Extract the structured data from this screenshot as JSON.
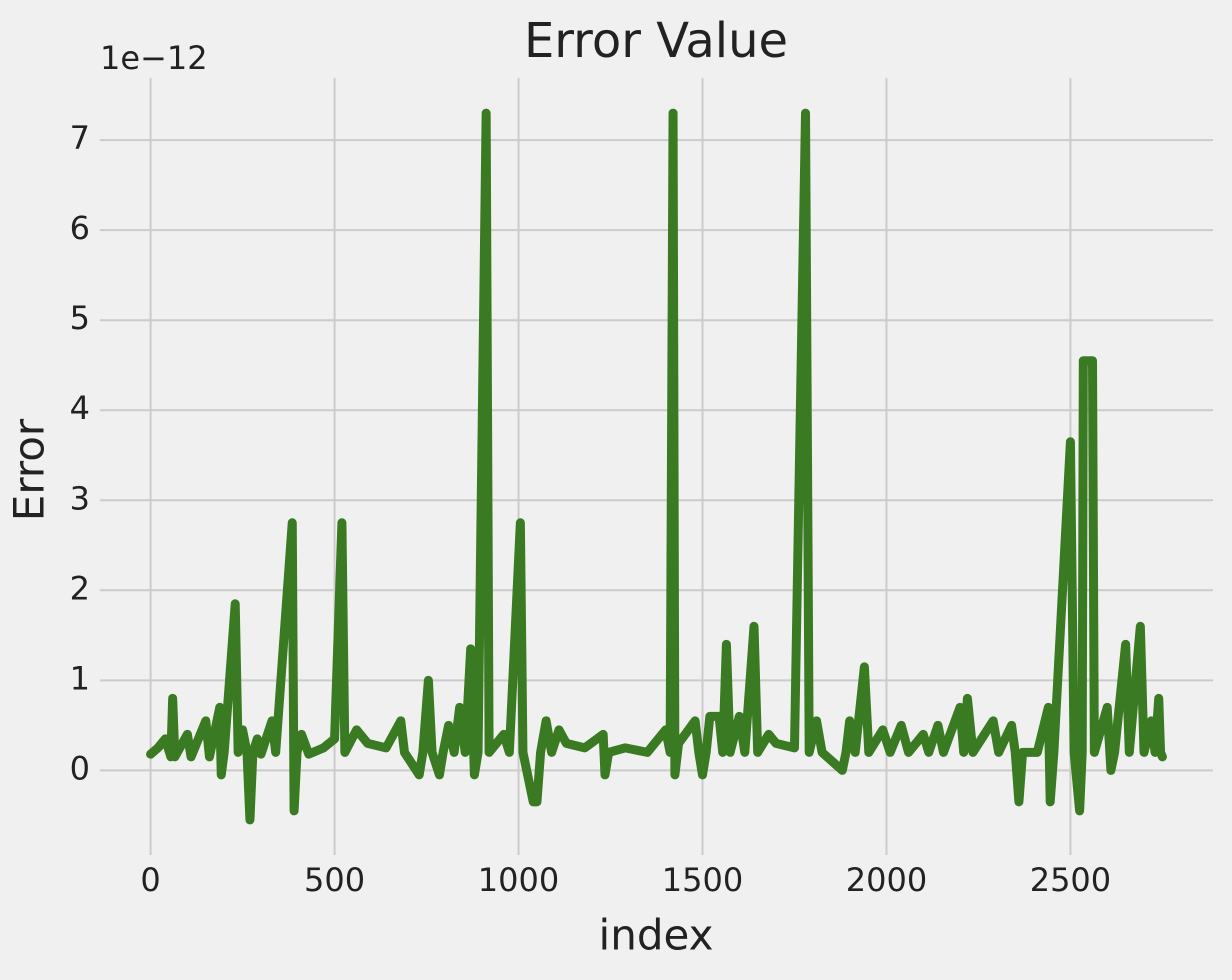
{
  "chart_data": {
    "type": "line",
    "title": "Error Value",
    "x_label": "index",
    "y_label": "Error",
    "offset_label": "1e−12",
    "x": [
      0,
      20,
      40,
      55,
      60,
      66,
      100,
      110,
      150,
      160,
      188,
      192,
      200,
      230,
      238,
      250,
      262,
      270,
      278,
      290,
      300,
      330,
      340,
      385,
      390,
      398,
      410,
      430,
      470,
      500,
      520,
      528,
      560,
      590,
      640,
      680,
      690,
      730,
      740,
      755,
      765,
      785,
      795,
      810,
      825,
      840,
      855,
      870,
      880,
      890,
      912,
      920,
      960,
      975,
      1005,
      1012,
      1040,
      1050,
      1060,
      1075,
      1090,
      1110,
      1130,
      1180,
      1230,
      1235,
      1245,
      1290,
      1350,
      1400,
      1412,
      1420,
      1425,
      1435,
      1480,
      1490,
      1500,
      1510,
      1520,
      1545,
      1555,
      1565,
      1575,
      1600,
      1615,
      1640,
      1650,
      1680,
      1700,
      1750,
      1780,
      1790,
      1810,
      1825,
      1880,
      1890,
      1900,
      1915,
      1940,
      1952,
      1990,
      2010,
      2040,
      2060,
      2100,
      2115,
      2140,
      2155,
      2200,
      2210,
      2220,
      2235,
      2290,
      2305,
      2340,
      2350,
      2360,
      2370,
      2410,
      2440,
      2445,
      2455,
      2500,
      2510,
      2525,
      2532,
      2535,
      2560,
      2565,
      2600,
      2610,
      2620,
      2650,
      2660,
      2690,
      2700,
      2720,
      2730,
      2740,
      2745,
      2750
    ],
    "series": [
      {
        "name": "Error",
        "color": "#3a7a22",
        "values": [
          0.18,
          0.25,
          0.35,
          0.15,
          0.8,
          0.15,
          0.4,
          0.15,
          0.55,
          0.15,
          0.7,
          -0.05,
          0.2,
          1.85,
          0.2,
          0.45,
          0.2,
          -0.55,
          0.2,
          0.35,
          0.18,
          0.55,
          0.2,
          2.75,
          -0.45,
          0.2,
          0.4,
          0.18,
          0.25,
          0.35,
          2.75,
          0.2,
          0.45,
          0.3,
          0.25,
          0.55,
          0.2,
          -0.05,
          0.2,
          1.0,
          0.2,
          -0.05,
          0.2,
          0.5,
          0.2,
          0.7,
          0.2,
          1.35,
          -0.05,
          0.2,
          7.3,
          0.2,
          0.4,
          0.2,
          2.75,
          0.2,
          -0.35,
          -0.35,
          0.2,
          0.55,
          0.2,
          0.45,
          0.3,
          0.25,
          0.4,
          -0.05,
          0.2,
          0.25,
          0.2,
          0.45,
          0.2,
          7.3,
          -0.05,
          0.3,
          0.55,
          0.2,
          -0.05,
          0.2,
          0.6,
          0.6,
          0.2,
          1.4,
          0.2,
          0.6,
          0.2,
          1.6,
          0.2,
          0.4,
          0.3,
          0.25,
          7.3,
          0.2,
          0.55,
          0.2,
          0.0,
          0.2,
          0.55,
          0.2,
          1.15,
          0.2,
          0.45,
          0.2,
          0.5,
          0.2,
          0.4,
          0.2,
          0.5,
          0.2,
          0.7,
          0.2,
          0.8,
          0.2,
          0.55,
          0.2,
          0.5,
          0.2,
          -0.35,
          0.2,
          0.2,
          0.7,
          -0.35,
          0.2,
          3.65,
          0.2,
          -0.45,
          0.2,
          4.55,
          4.55,
          0.2,
          0.7,
          0.0,
          0.2,
          1.4,
          0.2,
          1.6,
          0.2,
          0.55,
          0.2,
          0.8,
          0.2,
          0.15
        ]
      }
    ],
    "xlim": [
      -137.5,
      2887.5
    ],
    "ylim": [
      -0.94,
      7.69
    ],
    "xticks": [
      0,
      500,
      1000,
      1500,
      2000,
      2500
    ],
    "yticks": [
      0,
      1,
      2,
      3,
      4,
      5,
      6,
      7
    ],
    "grid": true
  }
}
